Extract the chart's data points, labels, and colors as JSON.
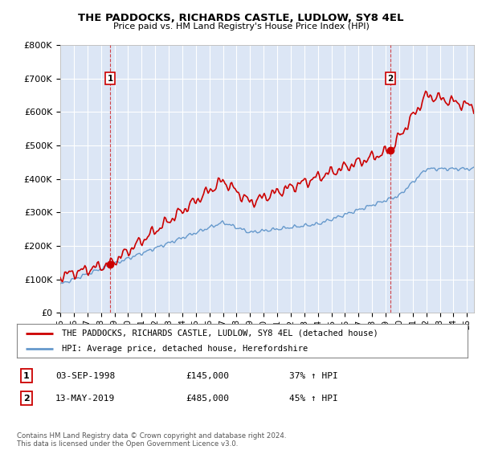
{
  "title": "THE PADDOCKS, RICHARDS CASTLE, LUDLOW, SY8 4EL",
  "subtitle": "Price paid vs. HM Land Registry's House Price Index (HPI)",
  "ylim": [
    0,
    800000
  ],
  "yticks": [
    0,
    100000,
    200000,
    300000,
    400000,
    500000,
    600000,
    700000,
    800000
  ],
  "ytick_labels": [
    "£0",
    "£100K",
    "£200K",
    "£300K",
    "£400K",
    "£500K",
    "£600K",
    "£700K",
    "£800K"
  ],
  "xlim_start": 1995.0,
  "xlim_end": 2025.5,
  "bg_color": "#dce6f5",
  "grid_color": "#ffffff",
  "red_color": "#cc0000",
  "blue_color": "#6699cc",
  "sale1_x": 1998.67,
  "sale1_y": 145000,
  "sale2_x": 2019.36,
  "sale2_y": 485000,
  "sale1_label": "1",
  "sale2_label": "2",
  "legend_red": "THE PADDOCKS, RICHARDS CASTLE, LUDLOW, SY8 4EL (detached house)",
  "legend_blue": "HPI: Average price, detached house, Herefordshire",
  "annotation1_num": "1",
  "annotation1_date": "03-SEP-1998",
  "annotation1_price": "£145,000",
  "annotation1_hpi": "37% ↑ HPI",
  "annotation2_num": "2",
  "annotation2_date": "13-MAY-2019",
  "annotation2_price": "£485,000",
  "annotation2_hpi": "45% ↑ HPI",
  "footer": "Contains HM Land Registry data © Crown copyright and database right 2024.\nThis data is licensed under the Open Government Licence v3.0.",
  "xticks": [
    1995,
    1996,
    1997,
    1998,
    1999,
    2000,
    2001,
    2002,
    2003,
    2004,
    2005,
    2006,
    2007,
    2008,
    2009,
    2010,
    2011,
    2012,
    2013,
    2014,
    2015,
    2016,
    2017,
    2018,
    2019,
    2020,
    2021,
    2022,
    2023,
    2024,
    2025
  ]
}
